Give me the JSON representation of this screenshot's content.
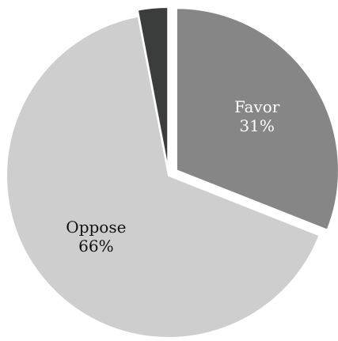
{
  "chart_data": {
    "type": "pie",
    "title": "",
    "slices": [
      {
        "label": "Favor",
        "pct_label": "31%",
        "value": 31,
        "color": "#868686",
        "text_color": "#ffffff"
      },
      {
        "label": "Oppose",
        "pct_label": "66%",
        "value": 66,
        "color": "#cecece",
        "text_color": "#111111"
      },
      {
        "label": "",
        "pct_label": "",
        "value": 3,
        "color": "#3b3d3c",
        "text_color": "#ffffff"
      }
    ]
  }
}
